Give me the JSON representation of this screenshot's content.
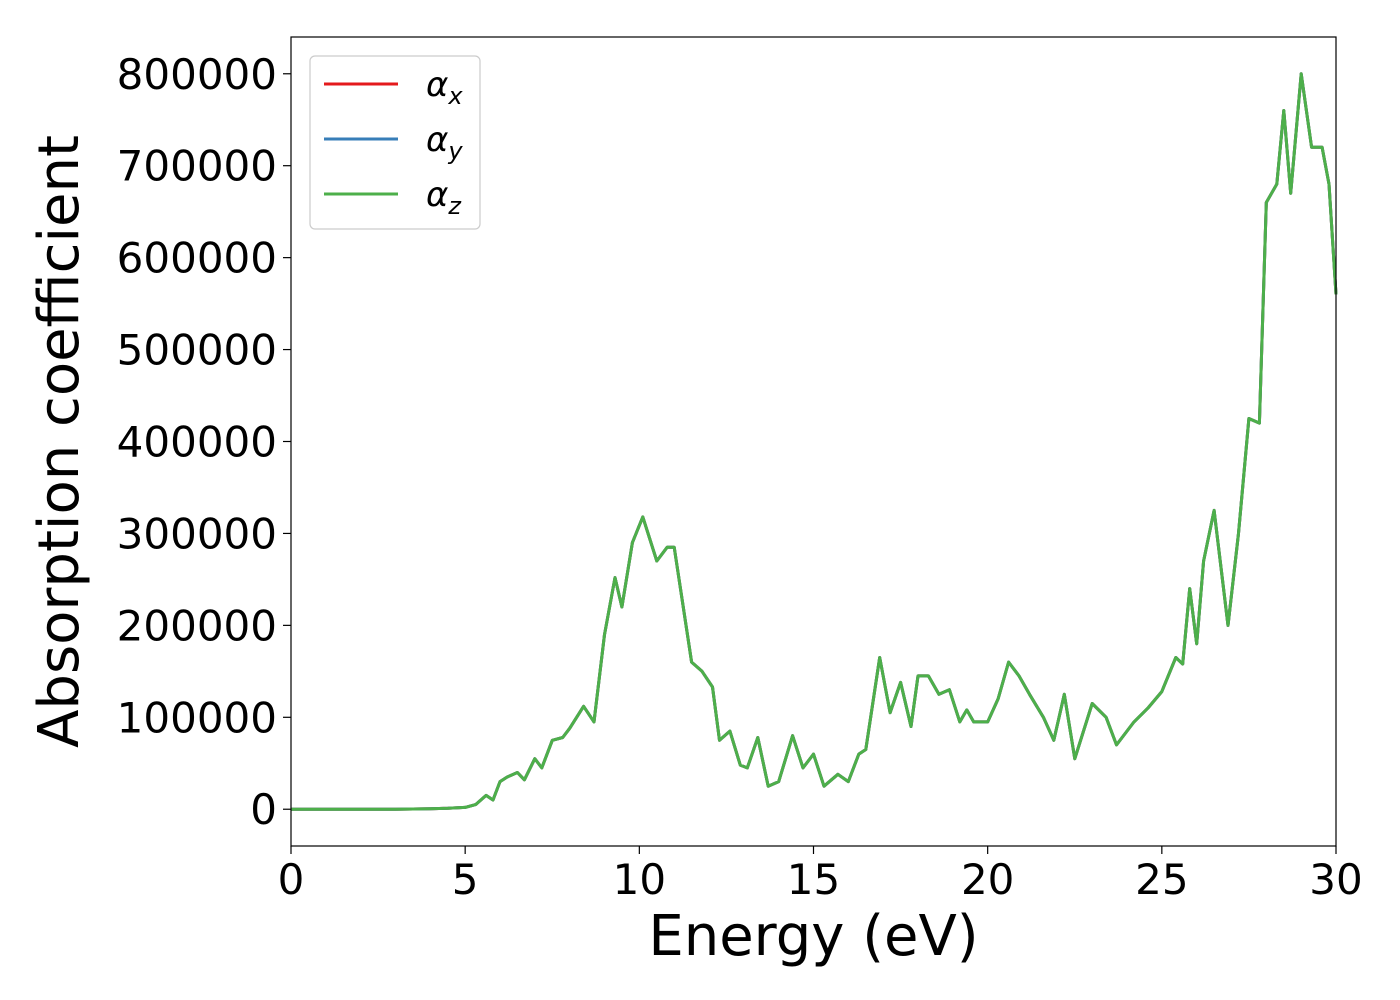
{
  "chart_data": {
    "type": "line",
    "title": "",
    "xlabel": "Energy (eV)",
    "ylabel": "Absorption coefficient",
    "xlim": [
      0,
      30
    ],
    "ylim": [
      -40000,
      840000
    ],
    "xticks": [
      0,
      5,
      10,
      15,
      20,
      25,
      30
    ],
    "yticks": [
      0,
      100000,
      200000,
      300000,
      400000,
      500000,
      600000,
      700000,
      800000
    ],
    "grid": false,
    "legend": {
      "placement": "top-left"
    },
    "legend_entries": [
      {
        "base": "α",
        "sub": "x",
        "color": "#e41a1c"
      },
      {
        "base": "α",
        "sub": "y",
        "color": "#377eb8"
      },
      {
        "base": "α",
        "sub": "z",
        "color": "#4daf4a"
      }
    ],
    "x": [
      0,
      1,
      2,
      3,
      4,
      4.5,
      5,
      5.3,
      5.6,
      5.8,
      6.0,
      6.2,
      6.5,
      6.7,
      7.0,
      7.2,
      7.5,
      7.8,
      8.0,
      8.4,
      8.7,
      9.0,
      9.3,
      9.5,
      9.8,
      10.1,
      10.5,
      10.8,
      11.0,
      11.5,
      11.8,
      12.1,
      12.3,
      12.6,
      12.9,
      13.1,
      13.4,
      13.7,
      14.0,
      14.4,
      14.7,
      15.0,
      15.3,
      15.7,
      16.0,
      16.3,
      16.5,
      16.9,
      17.2,
      17.5,
      17.8,
      18.0,
      18.3,
      18.6,
      18.9,
      19.2,
      19.4,
      19.6,
      20.0,
      20.3,
      20.6,
      20.9,
      21.2,
      21.6,
      21.9,
      22.2,
      22.5,
      23.0,
      23.4,
      23.7,
      24.2,
      24.6,
      25.0,
      25.4,
      25.6,
      25.8,
      26.0,
      26.2,
      26.5,
      26.9,
      27.2,
      27.5,
      27.8,
      28.0,
      28.3,
      28.5,
      28.7,
      29.0,
      29.3,
      29.6,
      29.8,
      30.0
    ],
    "series": [
      {
        "name": "α_x",
        "color": "#e41a1c",
        "values": [
          0,
          0,
          0,
          0,
          500,
          1000,
          2000,
          5000,
          15000,
          10000,
          30000,
          35000,
          40000,
          32000,
          55000,
          45000,
          75000,
          78000,
          88000,
          112000,
          95000,
          190000,
          252000,
          220000,
          290000,
          318000,
          270000,
          285000,
          285000,
          160000,
          150000,
          133000,
          75000,
          85000,
          48000,
          45000,
          78000,
          25000,
          30000,
          80000,
          45000,
          60000,
          25000,
          38000,
          30000,
          60000,
          65000,
          165000,
          105000,
          138000,
          90000,
          145000,
          145000,
          125000,
          130000,
          95000,
          108000,
          95000,
          95000,
          120000,
          160000,
          145000,
          125000,
          100000,
          75000,
          125000,
          55000,
          115000,
          100000,
          70000,
          95000,
          110000,
          128000,
          165000,
          158000,
          240000,
          180000,
          270000,
          325000,
          200000,
          300000,
          425000,
          420000,
          660000,
          680000,
          760000,
          670000,
          800000,
          720000,
          720000,
          680000,
          560000
        ]
      },
      {
        "name": "α_y",
        "color": "#377eb8",
        "values": [
          0,
          0,
          0,
          0,
          500,
          1000,
          2000,
          5000,
          15000,
          10000,
          30000,
          35000,
          40000,
          32000,
          55000,
          45000,
          75000,
          78000,
          88000,
          112000,
          95000,
          190000,
          252000,
          220000,
          290000,
          318000,
          270000,
          285000,
          285000,
          160000,
          150000,
          133000,
          75000,
          85000,
          48000,
          45000,
          78000,
          25000,
          30000,
          80000,
          45000,
          60000,
          25000,
          38000,
          30000,
          60000,
          65000,
          165000,
          105000,
          138000,
          90000,
          145000,
          145000,
          125000,
          130000,
          95000,
          108000,
          95000,
          95000,
          120000,
          160000,
          145000,
          125000,
          100000,
          75000,
          125000,
          55000,
          115000,
          100000,
          70000,
          95000,
          110000,
          128000,
          165000,
          158000,
          240000,
          180000,
          270000,
          325000,
          200000,
          300000,
          425000,
          420000,
          660000,
          680000,
          760000,
          670000,
          800000,
          720000,
          720000,
          680000,
          560000
        ]
      },
      {
        "name": "α_z",
        "color": "#4daf4a",
        "values": [
          0,
          0,
          0,
          0,
          500,
          1000,
          2000,
          5000,
          15000,
          10000,
          30000,
          35000,
          40000,
          32000,
          55000,
          45000,
          75000,
          78000,
          88000,
          112000,
          95000,
          190000,
          252000,
          220000,
          290000,
          318000,
          270000,
          285000,
          285000,
          160000,
          150000,
          133000,
          75000,
          85000,
          48000,
          45000,
          78000,
          25000,
          30000,
          80000,
          45000,
          60000,
          25000,
          38000,
          30000,
          60000,
          65000,
          165000,
          105000,
          138000,
          90000,
          145000,
          145000,
          125000,
          130000,
          95000,
          108000,
          95000,
          95000,
          120000,
          160000,
          145000,
          125000,
          100000,
          75000,
          125000,
          55000,
          115000,
          100000,
          70000,
          95000,
          110000,
          128000,
          165000,
          158000,
          240000,
          180000,
          270000,
          325000,
          200000,
          300000,
          425000,
          420000,
          660000,
          680000,
          760000,
          670000,
          800000,
          720000,
          720000,
          680000,
          560000
        ]
      }
    ]
  }
}
